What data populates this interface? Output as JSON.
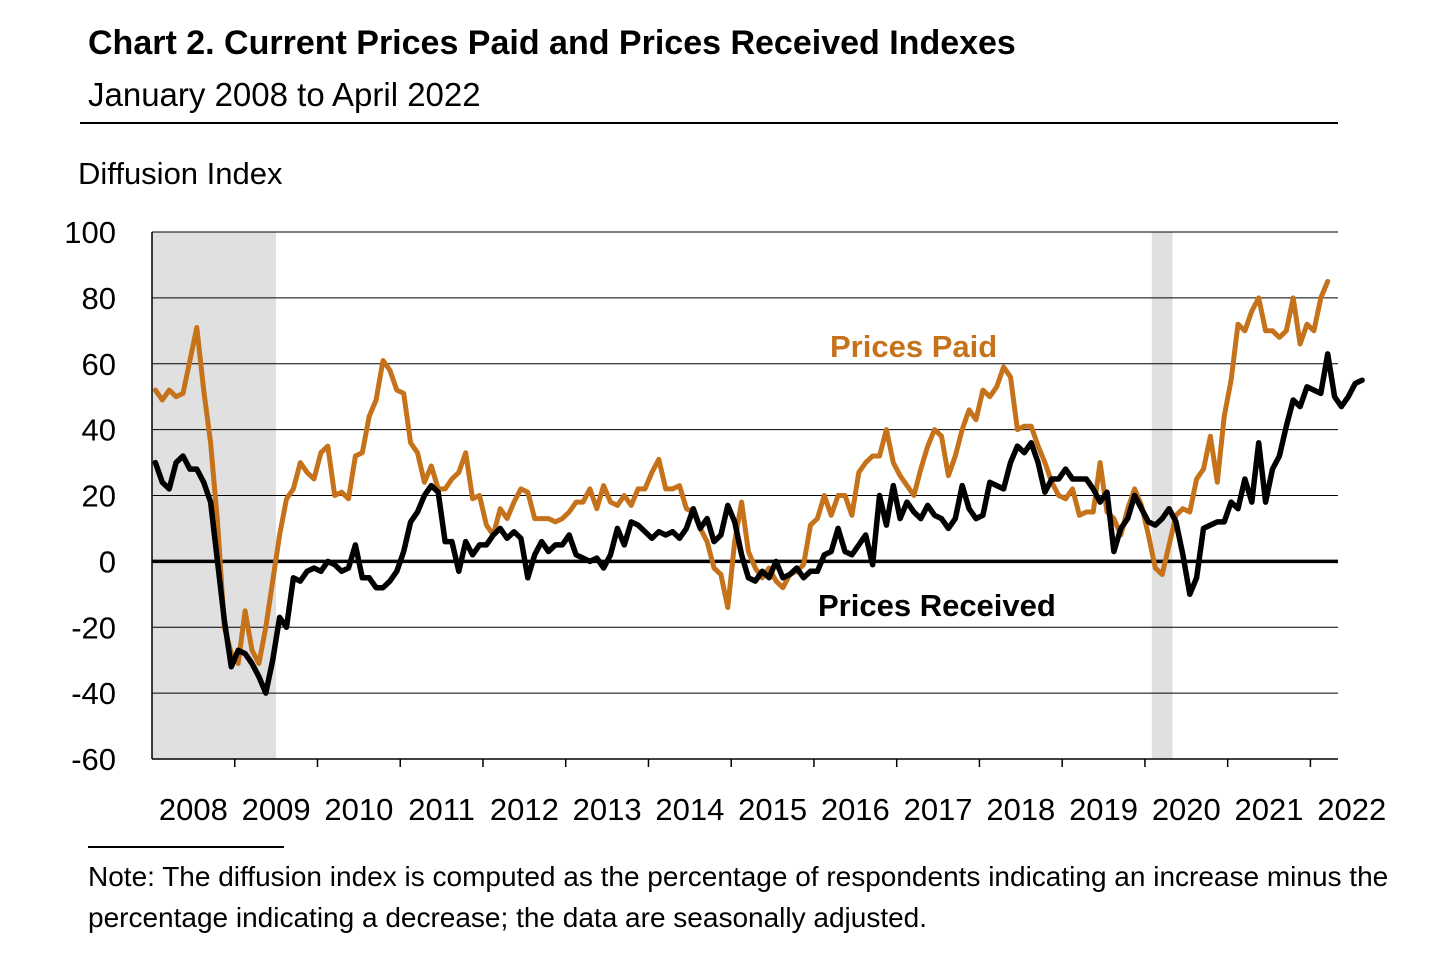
{
  "header": {
    "title": "Chart 2. Current Prices Paid and Prices Received Indexes",
    "subtitle": "January 2008 to April 2022"
  },
  "note": "Note: The diffusion index is computed as the percentage of respondents indicating an increase minus the percentage indicating a decrease; the data are seasonally adjusted.",
  "colors": {
    "prices_paid": "#C5721A",
    "prices_received": "#000000",
    "recession_shading": "#E0E0E0",
    "grid": "#000000"
  },
  "chart_data": {
    "type": "line",
    "ylabel": "Diffusion Index",
    "ylim": [
      -60,
      100
    ],
    "yticks": [
      100,
      80,
      60,
      40,
      20,
      0,
      -20,
      -40,
      -60
    ],
    "x_start": "2008-01",
    "x_end": "2022-04",
    "xticks": [
      "2008",
      "2009",
      "2010",
      "2011",
      "2012",
      "2013",
      "2014",
      "2015",
      "2016",
      "2017",
      "2018",
      "2019",
      "2020",
      "2021",
      "2022"
    ],
    "recessions": [
      [
        "2008-01",
        "2009-06"
      ],
      [
        "2020-02",
        "2020-04"
      ]
    ],
    "series": [
      {
        "name": "Prices Paid",
        "values": [
          52,
          49,
          52,
          50,
          51,
          61,
          71,
          52,
          36,
          12,
          -20,
          -28,
          -31,
          -15,
          -27,
          -31,
          -20,
          -6,
          8,
          19,
          22,
          30,
          27,
          25,
          33,
          35,
          20,
          21,
          19,
          32,
          33,
          44,
          49,
          61,
          58,
          52,
          51,
          36,
          33,
          24,
          29,
          22,
          22,
          25,
          27,
          33,
          19,
          20,
          11,
          8,
          16,
          13,
          18,
          22,
          21,
          13,
          13,
          13,
          12,
          13,
          15,
          18,
          18,
          22,
          16,
          23,
          18,
          17,
          20,
          17,
          22,
          22,
          27,
          31,
          22,
          22,
          23,
          16,
          15,
          10,
          6,
          -2,
          -4,
          -14,
          6,
          18,
          3,
          -2,
          -5,
          -2,
          -6,
          -8,
          -4,
          -3,
          -1,
          11,
          13,
          20,
          14,
          20,
          20,
          14,
          27,
          30,
          32,
          32,
          40,
          30,
          26,
          23,
          20,
          28,
          35,
          40,
          38,
          26,
          32,
          40,
          46,
          43,
          52,
          50,
          53,
          59,
          56,
          40,
          41,
          41,
          35,
          30,
          24,
          20,
          19,
          22,
          14,
          15,
          15,
          30,
          15,
          13,
          8,
          16,
          22,
          17,
          8,
          -2,
          -4,
          5,
          14,
          16,
          15,
          25,
          28,
          38,
          24,
          44,
          55,
          72,
          70,
          76,
          80,
          70,
          70,
          68,
          70,
          80,
          66,
          72,
          70,
          80,
          85
        ]
      },
      {
        "name": "Prices Received",
        "values": [
          30,
          24,
          22,
          30,
          32,
          28,
          28,
          24,
          18,
          0,
          -18,
          -32,
          -27,
          -28,
          -31,
          -35,
          -40,
          -30,
          -17,
          -20,
          -5,
          -6,
          -3,
          -2,
          -3,
          0,
          -1,
          -3,
          -2,
          5,
          -5,
          -5,
          -8,
          -8,
          -6,
          -3,
          3,
          12,
          15,
          20,
          23,
          21,
          6,
          6,
          -3,
          6,
          2,
          5,
          5,
          8,
          10,
          7,
          9,
          7,
          -5,
          2,
          6,
          3,
          5,
          5,
          8,
          2,
          1,
          0,
          1,
          -2,
          2,
          10,
          5,
          12,
          11,
          9,
          7,
          9,
          8,
          9,
          7,
          10,
          16,
          10,
          13,
          6,
          8,
          17,
          12,
          2,
          -5,
          -6,
          -3,
          -5,
          0,
          -5,
          -4,
          -2,
          -5,
          -3,
          -3,
          2,
          3,
          10,
          3,
          2,
          5,
          8,
          -1,
          20,
          11,
          23,
          13,
          18,
          15,
          13,
          17,
          14,
          13,
          10,
          13,
          23,
          16,
          13,
          14,
          24,
          23,
          22,
          30,
          35,
          33,
          36,
          30,
          21,
          25,
          25,
          28,
          25,
          25,
          25,
          22,
          18,
          21,
          3,
          10,
          13,
          20,
          16,
          12,
          11,
          13,
          16,
          12,
          2,
          -10,
          -5,
          10,
          11,
          12,
          12,
          18,
          16,
          25,
          18,
          36,
          18,
          28,
          32,
          41,
          49,
          47,
          53,
          52,
          51,
          63,
          50,
          47,
          50,
          54,
          55
        ]
      }
    ],
    "series_labels": [
      "Prices Paid",
      "Prices Received"
    ]
  }
}
